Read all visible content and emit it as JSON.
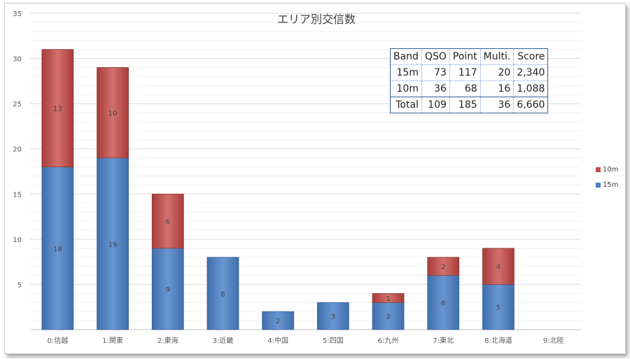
{
  "chart_data": {
    "type": "bar",
    "stacked": true,
    "title": "エリア別交信数",
    "categories": [
      "0:信越",
      "1:関東",
      "2:東海",
      "3:近畿",
      "4:中国",
      "5:四国",
      "6:九州",
      "7:東北",
      "8:北海道",
      "9:北陸"
    ],
    "series": [
      {
        "name": "15m",
        "values": [
          18,
          19,
          9,
          8,
          2,
          3,
          3,
          6,
          5,
          0
        ],
        "color": "#4f81bd"
      },
      {
        "name": "10m",
        "values": [
          13,
          10,
          6,
          0,
          0,
          0,
          1,
          2,
          4,
          0
        ],
        "color": "#c0504d"
      }
    ],
    "ylim": [
      0,
      35
    ],
    "yticks": [
      5,
      10,
      15,
      20,
      25,
      30,
      35
    ],
    "grid": true,
    "legend": "right"
  },
  "legend_items": [
    {
      "name": "10m",
      "color": "#c0504d"
    },
    {
      "name": "15m",
      "color": "#4f81bd"
    }
  ],
  "table": {
    "header": [
      "Band",
      "QSO",
      "Point",
      "Multi.",
      "Score"
    ],
    "rows": [
      [
        "15m",
        "73",
        "117",
        "20",
        "2,340"
      ],
      [
        "10m",
        "36",
        "68",
        "16",
        "1,088"
      ],
      [
        "Total",
        "109",
        "185",
        "36",
        "6,660"
      ]
    ]
  }
}
